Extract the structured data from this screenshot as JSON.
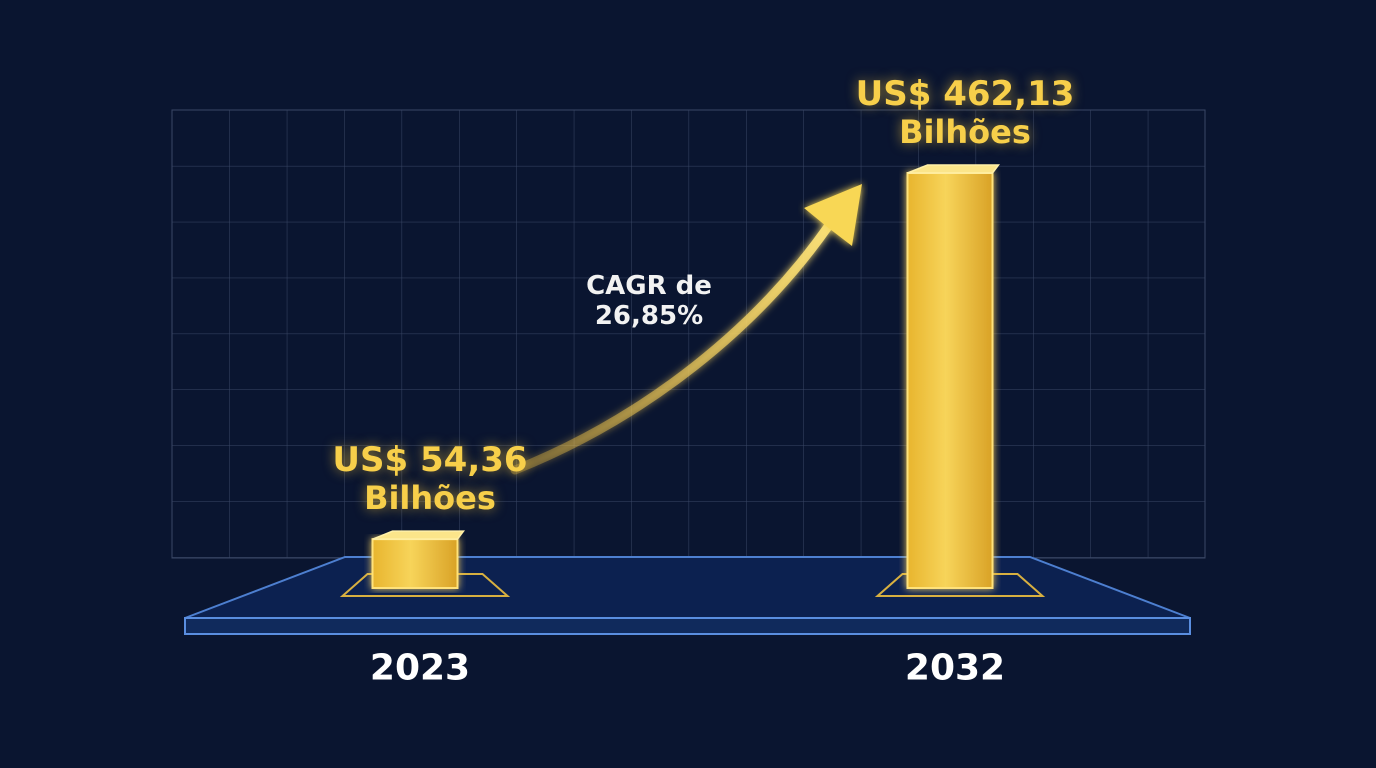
{
  "chart_data": {
    "type": "bar",
    "categories": [
      "2023",
      "2032"
    ],
    "values": [
      54.36,
      462.13
    ],
    "value_labels": [
      "US$ 54,36\nBilhões",
      "US$ 462,13\nBilhões"
    ],
    "color": "#f2c53d",
    "annotation": "CAGR de\n26,85%"
  }
}
